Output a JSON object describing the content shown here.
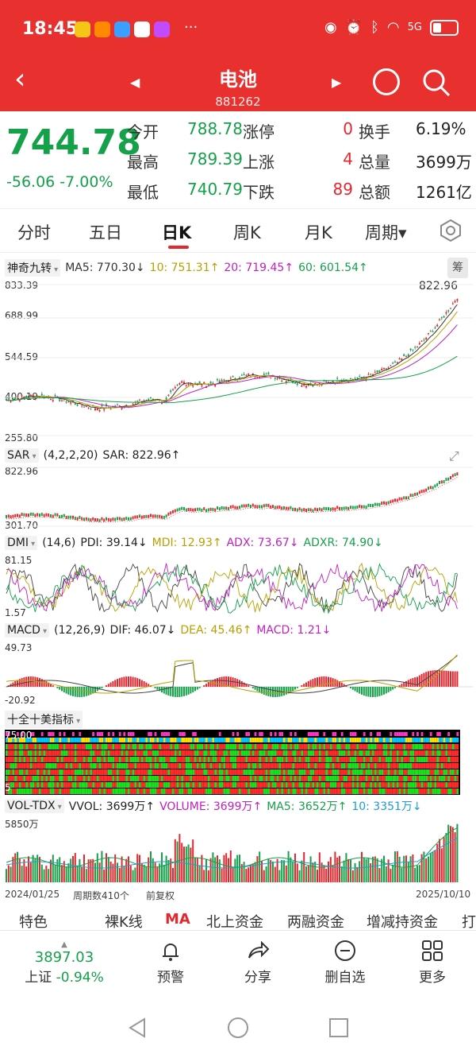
{
  "status": {
    "time": "18:45",
    "dots": "···",
    "signal": "5G"
  },
  "header": {
    "back": "‹",
    "title": "电池",
    "code": "881262",
    "prev": "◀",
    "next": "▶"
  },
  "quote": {
    "price": "744.78",
    "change": "-56.06",
    "pct": "-7.00%",
    "rows": [
      {
        "l1": "今开",
        "v1": "788.78",
        "l2": "涨停",
        "v2": "0",
        "l3": "换手",
        "v3": "6.19%"
      },
      {
        "l1": "最高",
        "v1": "789.39",
        "l2": "上涨",
        "v2": "4",
        "l3": "总量",
        "v3": "3699万"
      },
      {
        "l1": "最低",
        "v1": "740.79",
        "l2": "下跌",
        "v2": "89",
        "l3": "总额",
        "v3": "1261亿"
      }
    ]
  },
  "tabs": [
    "分时",
    "五日",
    "日K",
    "周K",
    "月K",
    "周期▾"
  ],
  "kline": {
    "indicator": "神奇九转",
    "ma5": "MA5: 770.30↓",
    "ma10": "10: 751.31↑",
    "ma20": "20: 719.45↑",
    "ma60": "60: 601.54↑",
    "chip": "筹",
    "axis": [
      "833.39",
      "688.99",
      "544.59",
      "400.19",
      "255.80"
    ],
    "high_label": "822.96"
  },
  "sar": {
    "name": "SAR",
    "params": "(4,2,2,20)",
    "value": "SAR: 822.96↑",
    "axis": [
      "822.96",
      "301.70"
    ]
  },
  "dmi": {
    "name": "DMI",
    "params": "(14,6)",
    "pdi": "PDI: 39.14↓",
    "mdi": "MDI: 12.93↑",
    "adx": "ADX: 73.67↓",
    "adxr": "ADXR: 74.90↓",
    "axis": [
      "81.15",
      "1.57"
    ]
  },
  "macd": {
    "name": "MACD",
    "params": "(12,26,9)",
    "dif": "DIF: 46.07↓",
    "dea": "DEA: 45.46↑",
    "macd": "MACD: 1.21↓",
    "axis": [
      "49.73",
      "-20.92"
    ]
  },
  "tenten": {
    "name": "十全十美指标",
    "axis": [
      "75.00",
      "5"
    ]
  },
  "vol": {
    "name": "VOL-TDX",
    "vvol": "VVOL: 3699万↑",
    "volume": "VOLUME: 3699万↑",
    "ma5": "MA5: 3652万↑",
    "ma10": "10: 3351万↓",
    "axis": "5850万"
  },
  "footer": {
    "start": "2024/01/25",
    "count": "周期数410个",
    "adj": "前复权",
    "end": "2025/10/10"
  },
  "subtabs": [
    "特色",
    "裸K线",
    "MA",
    "北上资金",
    "两融资金",
    "增减持资金",
    "打"
  ],
  "index": {
    "value": "3897.03",
    "name": "上证",
    "pct": "-0.94%"
  },
  "nav": [
    "预警",
    "分享",
    "删自选",
    "更多"
  ],
  "colors": {
    "up": "#e6262d",
    "down": "#15a04a",
    "header": "#e8302f"
  }
}
